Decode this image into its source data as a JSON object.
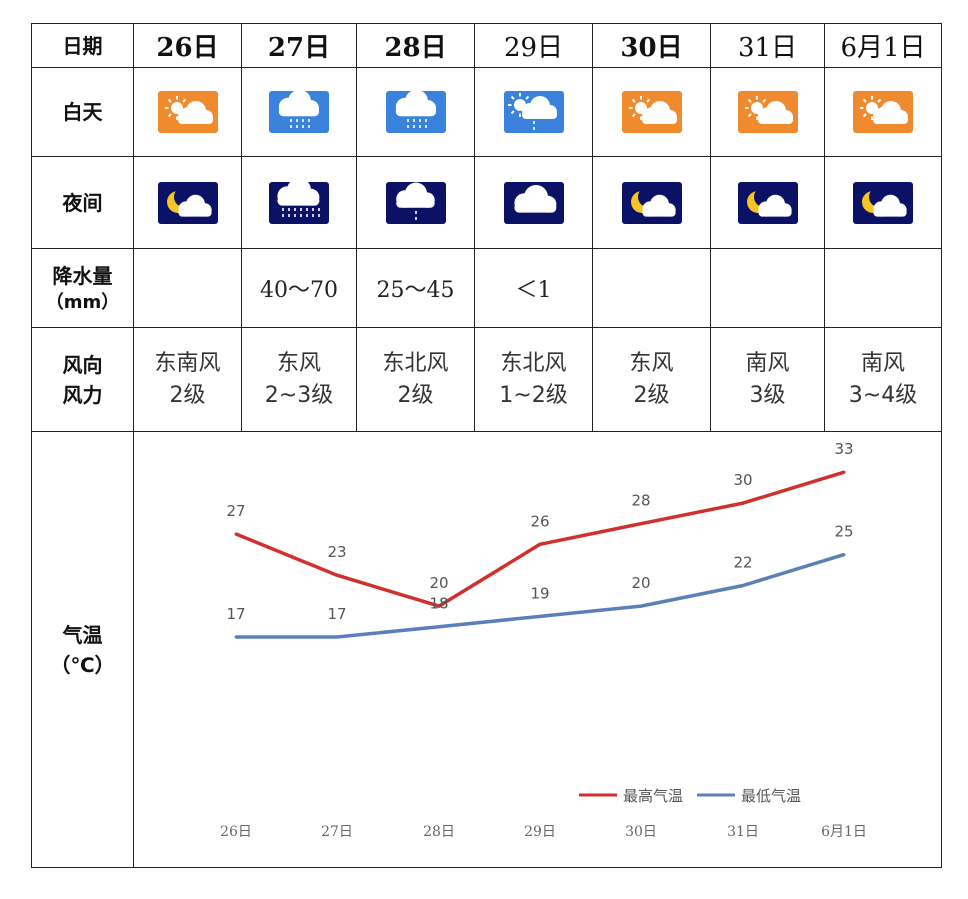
{
  "labels": {
    "date": "日期",
    "day": "白天",
    "night": "夜间",
    "precip": [
      "降水量",
      "（mm）"
    ],
    "wind": [
      "风向",
      "风力"
    ],
    "temp": [
      "气温",
      "（℃）"
    ]
  },
  "days": [
    {
      "date": "26日",
      "bold": true,
      "day_icon": "sunny-partly-cloudy-icon",
      "night_icon": "moon-cloud-icon",
      "precip": "",
      "wind_dir": "东南风",
      "wind_lvl": "2级"
    },
    {
      "date": "27日",
      "bold": true,
      "day_icon": "rain-cloud-icon",
      "night_icon": "heavy-rain-cloud-icon",
      "precip": "40～70",
      "wind_dir": "东风",
      "wind_lvl": "2~3级"
    },
    {
      "date": "28日",
      "bold": true,
      "day_icon": "rain-cloud-icon",
      "night_icon": "light-rain-cloud-icon",
      "precip": "25～45",
      "wind_dir": "东北风",
      "wind_lvl": "2级"
    },
    {
      "date": "29日",
      "bold": false,
      "day_icon": "sun-cloud-shower-icon",
      "night_icon": "cloudy-night-icon",
      "precip": "＜1",
      "wind_dir": "东北风",
      "wind_lvl": "1~2级"
    },
    {
      "date": "30日",
      "bold": true,
      "day_icon": "sunny-partly-cloudy-icon",
      "night_icon": "moon-cloud-icon",
      "precip": "",
      "wind_dir": "东风",
      "wind_lvl": "2级"
    },
    {
      "date": "31日",
      "bold": false,
      "day_icon": "sunny-partly-cloudy-icon",
      "night_icon": "moon-cloud-icon",
      "precip": "",
      "wind_dir": "南风",
      "wind_lvl": "3级"
    },
    {
      "date": "6月1日",
      "bold": false,
      "day_icon": "sunny-partly-cloudy-icon",
      "night_icon": "moon-cloud-icon",
      "precip": "",
      "wind_dir": "南风",
      "wind_lvl": "3~4级"
    }
  ],
  "colors": {
    "day_orange": "#ef8a2e",
    "day_blue": "#3a82dc",
    "night_navy": "#0b1266",
    "high_series": "#d0312d",
    "low_series": "#5b80b9"
  },
  "chart_data": {
    "type": "line",
    "categories": [
      "26日",
      "27日",
      "28日",
      "29日",
      "30日",
      "31日",
      "6月1日"
    ],
    "series": [
      {
        "name": "最高气温",
        "values": [
          27,
          23,
          20,
          26,
          28,
          30,
          33
        ]
      },
      {
        "name": "最低气温",
        "values": [
          17,
          17,
          18,
          19,
          20,
          22,
          25
        ]
      }
    ],
    "ylim": [
      0,
      36
    ],
    "grid": false,
    "legend": "bottom-right",
    "data_labels": true
  }
}
